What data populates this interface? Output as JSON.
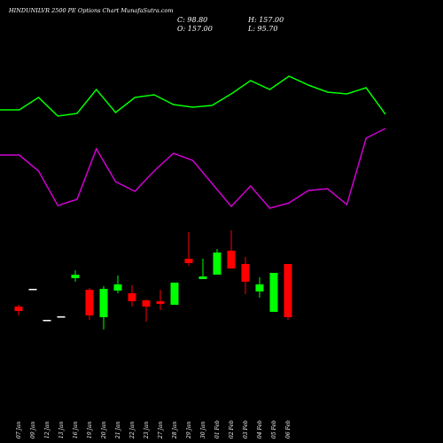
{
  "header": {
    "title": "HINDUNILVR 2500 PE Options Chart MunafaSutra.com",
    "close": "C: 98.80",
    "open": "O: 157.00",
    "high": "H: 157.00",
    "low": "L: 95.70"
  },
  "chart_data": [
    {
      "type": "candlestick",
      "categories": [
        "07 Jan",
        "09 Jan",
        "12 Jan",
        "13 Jan",
        "16 Jan",
        "19 Jan",
        "20 Jan",
        "21 Jan",
        "22 Jan",
        "23 Jan",
        "27 Jan",
        "28 Jan",
        "29 Jan",
        "30 Jan",
        "01 Feb",
        "02 Feb",
        "03 Feb",
        "04 Feb",
        "05 Feb",
        "06 Feb"
      ],
      "open": [
        110.4,
        129.8,
        95.8,
        99.7,
        141.5,
        128.8,
        98.7,
        127.9,
        125,
        117.2,
        116.2,
        112.3,
        162.8,
        140.5,
        145.3,
        171.6,
        157,
        126.9,
        104.6,
        157
      ],
      "high": [
        112.3,
        129.8,
        95.8,
        99.7,
        150.2,
        130.8,
        132.7,
        144.4,
        133.7,
        118.2,
        128.8,
        136.6,
        192,
        162.8,
        173.5,
        193.9,
        164.8,
        142.4,
        147.3,
        157
      ],
      "low": [
        100.7,
        129.8,
        95.8,
        99.7,
        137.6,
        95.8,
        85.2,
        125,
        110.4,
        93.9,
        106.5,
        112.3,
        155.1,
        140.5,
        145.3,
        152.1,
        124,
        120.1,
        104.6,
        95.7
      ],
      "close": [
        105.5,
        129.8,
        95.8,
        99.7,
        145.3,
        100.7,
        129.8,
        134.7,
        116.2,
        110.4,
        113.3,
        136.6,
        158,
        143.4,
        169.6,
        152.1,
        137.6,
        134.7,
        147.3,
        98.8
      ],
      "up_color": "#00ff00",
      "down_color": "#ff0000",
      "doji_color": "#ffffff",
      "ylim": [
        9.4,
        203.6
      ]
    },
    {
      "type": "line",
      "series": [
        {
          "color": "#00ff00",
          "values": [
            126,
            126,
            140,
            119,
            122,
            149,
            123,
            140,
            143,
            132,
            129,
            131,
            144,
            159,
            149,
            164,
            154,
            146,
            144,
            151,
            121
          ]
        },
        {
          "color": "#d000d0",
          "values": [
            75,
            75,
            57,
            18,
            25,
            82,
            45,
            34,
            57,
            77,
            69,
            43,
            17,
            40,
            15,
            21,
            35,
            37,
            19,
            94,
            105
          ]
        }
      ],
      "ylim": [
        0,
        250
      ]
    }
  ]
}
